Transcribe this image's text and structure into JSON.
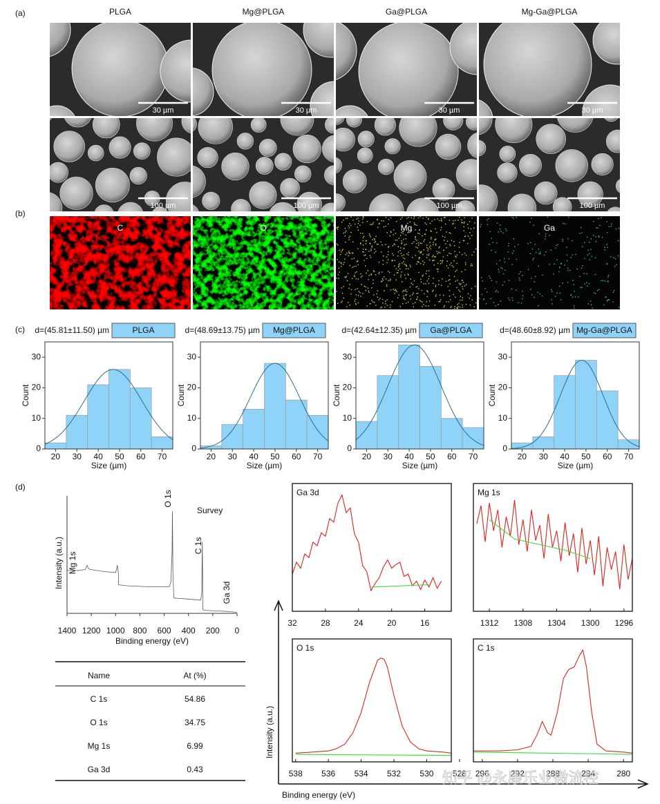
{
  "panel_labels": [
    "(a)",
    "(b)",
    "(c)",
    "(d)"
  ],
  "sem": {
    "columns": [
      "PLGA",
      "Mg@PLGA",
      "Ga@PLGA",
      "Mg-Ga@PLGA"
    ],
    "scale_top": [
      "30 µm",
      "30 µm",
      "30 µm",
      "30 µm"
    ],
    "scale_bottom": [
      "100 µm",
      "100 µm",
      "100 µm",
      "100 µm"
    ]
  },
  "eds": [
    "C",
    "O",
    "Mg",
    "Ga"
  ],
  "chart_data": [
    {
      "type": "histogram",
      "title": "d=(45.81±11.50) µm",
      "bins": [
        15,
        25,
        35,
        45,
        55,
        65,
        75
      ],
      "series": [
        {
          "name": "PLGA",
          "color": "#8fd3f8",
          "values": [
            2,
            11,
            21,
            26,
            20,
            4
          ]
        }
      ],
      "fit": {
        "mean": 47,
        "sd": 13.5,
        "peak": 26,
        "color": "#2f6b8e"
      },
      "xlim": [
        15,
        75
      ],
      "xticks": [
        20,
        30,
        40,
        50,
        60,
        70
      ],
      "ylim": [
        0,
        35
      ],
      "yticks": [
        0,
        10,
        20,
        30
      ],
      "x_label": "Size (µm)",
      "y_label": "Count"
    },
    {
      "type": "histogram",
      "title": "d=(48.69±13.75) µm",
      "bins": [
        15,
        25,
        35,
        45,
        55,
        65,
        75
      ],
      "series": [
        {
          "name": "Mg@PLGA",
          "color": "#8fd3f8",
          "values": [
            1,
            8,
            13,
            28,
            16,
            11
          ]
        }
      ],
      "fit": {
        "mean": 50,
        "sd": 11.5,
        "peak": 28,
        "color": "#2f6b8e"
      },
      "xlim": [
        15,
        75
      ],
      "xticks": [
        20,
        30,
        40,
        50,
        60,
        70
      ],
      "ylim": [
        0,
        35
      ],
      "yticks": [
        0,
        10,
        20,
        30
      ],
      "x_label": "Size (µm)",
      "y_label": "Count"
    },
    {
      "type": "histogram",
      "title": "d=(42.64±12.35) µm",
      "bins": [
        15,
        25,
        35,
        45,
        55,
        65,
        75
      ],
      "series": [
        {
          "name": "Ga@PLGA",
          "color": "#8fd3f8",
          "values": [
            9,
            24,
            34,
            27,
            10,
            7
          ]
        }
      ],
      "fit": {
        "mean": 42.5,
        "sd": 12.5,
        "peak": 34,
        "color": "#2f6b8e"
      },
      "xlim": [
        15,
        75
      ],
      "xticks": [
        20,
        30,
        40,
        50,
        60,
        70
      ],
      "ylim": [
        0,
        35
      ],
      "yticks": [
        0,
        10,
        20,
        30
      ],
      "x_label": "Size (µm)",
      "y_label": "Count"
    },
    {
      "type": "histogram",
      "title": "d=(48.60±8.92) µm",
      "bins": [
        15,
        25,
        35,
        45,
        55,
        65,
        75
      ],
      "series": [
        {
          "name": "Mg-Ga@PLGA",
          "color": "#8fd3f8",
          "values": [
            2,
            4,
            24,
            29,
            19,
            3
          ]
        }
      ],
      "fit": {
        "mean": 48,
        "sd": 10,
        "peak": 29,
        "color": "#2f6b8e"
      },
      "xlim": [
        15,
        75
      ],
      "xticks": [
        20,
        30,
        40,
        50,
        60,
        70
      ],
      "ylim": [
        0,
        35
      ],
      "yticks": [
        0,
        10,
        20,
        30
      ],
      "x_label": "Size (µm)",
      "y_label": "Count"
    },
    {
      "type": "survey",
      "annotations": [
        "O 1s",
        "Survey",
        "C 1s",
        "Mg 1s",
        "Ga 3d"
      ],
      "series": [
        {
          "color": "#555555",
          "x": [
            1400,
            1300,
            1250,
            1235,
            1225,
            1210,
            1100,
            1000,
            985,
            978,
            975,
            900,
            700,
            560,
            545,
            535,
            532,
            528,
            520,
            400,
            300,
            290,
            286,
            284,
            282,
            275,
            100,
            0
          ],
          "values": [
            42,
            42,
            43,
            47,
            44,
            43,
            41,
            40,
            47,
            40,
            28,
            27,
            26,
            26,
            30,
            60,
            100,
            40,
            15,
            14,
            13,
            20,
            70,
            45,
            4,
            3,
            2,
            1
          ]
        }
      ],
      "xlim": [
        1400,
        0
      ],
      "xticks": [
        1400,
        1200,
        1000,
        800,
        600,
        400,
        200,
        0
      ],
      "ylim": [
        0,
        115
      ],
      "x_label": "Binding energy (eV)",
      "y_label": "Intensity (a.u.)"
    },
    {
      "type": "line",
      "title": "Ga 3d",
      "series": [
        {
          "color": "#e0201b",
          "x": [
            32,
            31.5,
            31,
            30.5,
            30,
            29.5,
            29,
            28.5,
            28,
            27.5,
            27,
            26.5,
            26,
            25.5,
            25,
            24.5,
            24,
            23.5,
            23,
            22.5,
            22,
            21.5,
            21,
            20.5,
            20,
            19.5,
            19,
            18.5,
            18,
            17.5,
            17,
            16.5,
            16,
            15.5,
            15,
            14.5,
            14
          ],
          "values": [
            28,
            38,
            33,
            45,
            42,
            55,
            52,
            63,
            60,
            75,
            72,
            88,
            95,
            80,
            84,
            62,
            55,
            35,
            30,
            14,
            20,
            25,
            34,
            40,
            33,
            36,
            38,
            26,
            28,
            18,
            22,
            15,
            23,
            17,
            25,
            16,
            22
          ]
        },
        {
          "color": "#33dd33",
          "x": [
            22.5,
            15.5
          ],
          "values": [
            17,
            19
          ]
        }
      ],
      "xlim": [
        32,
        12.8
      ],
      "xticks": [
        32,
        28,
        24,
        20,
        16
      ],
      "ylim": [
        0,
        100
      ]
    },
    {
      "type": "line",
      "title": "Mg 1s",
      "series": [
        {
          "color": "#e0201b",
          "x": [
            1313.5,
            1313,
            1312.5,
            1312,
            1311.5,
            1311,
            1310.5,
            1310,
            1309.5,
            1309,
            1308.5,
            1308,
            1307.5,
            1307,
            1306.5,
            1306,
            1305.5,
            1305,
            1304.5,
            1304,
            1303.5,
            1303,
            1302.5,
            1302,
            1301.5,
            1301,
            1300.5,
            1300,
            1299.5,
            1299,
            1298.5,
            1298,
            1297.5,
            1297,
            1296.5,
            1296,
            1295.5,
            1295
          ],
          "values": [
            75,
            88,
            62,
            90,
            70,
            85,
            58,
            80,
            66,
            92,
            60,
            78,
            55,
            85,
            63,
            74,
            50,
            82,
            58,
            70,
            48,
            76,
            52,
            68,
            40,
            72,
            46,
            63,
            38,
            66,
            30,
            58,
            42,
            55,
            28,
            60,
            35,
            50
          ]
        },
        {
          "color": "#33dd33",
          "x": [
            1312,
            1309,
            1306,
            1303,
            1300
          ],
          "values": [
            78,
            64,
            60,
            56,
            50
          ]
        }
      ],
      "xlim": [
        1313.9,
        1295
      ],
      "xticks": [
        1312,
        1308,
        1304,
        1300,
        1296
      ],
      "ylim": [
        15,
        100
      ]
    },
    {
      "type": "line",
      "title": "O 1s",
      "series": [
        {
          "color": "#d42a1c",
          "x": [
            538,
            537,
            536,
            535.5,
            535,
            534.5,
            534,
            533.5,
            533,
            532.8,
            532.6,
            532.4,
            532,
            531.5,
            531,
            530.5,
            530,
            529,
            528.5
          ],
          "values": [
            4,
            5,
            6,
            8,
            12,
            22,
            40,
            66,
            86,
            88,
            87,
            80,
            55,
            28,
            14,
            8,
            6,
            5,
            4
          ]
        },
        {
          "color": "#33dd33",
          "x": [
            538,
            528.5
          ],
          "values": [
            3,
            2
          ]
        }
      ],
      "xlim": [
        538.2,
        528.5
      ],
      "xticks": [
        538,
        536,
        534,
        532,
        530,
        528
      ],
      "ylim": [
        0,
        100
      ]
    },
    {
      "type": "line",
      "title": "C 1s",
      "series": [
        {
          "color": "#d42a1c",
          "x": [
            297,
            294,
            292,
            290.5,
            289.8,
            289.2,
            288.6,
            288.2,
            287.5,
            286.8,
            286.2,
            285.6,
            285,
            284.6,
            284.2,
            283.6,
            283,
            282,
            280,
            279
          ],
          "values": [
            6,
            6,
            7,
            10,
            20,
            32,
            22,
            20,
            40,
            70,
            78,
            80,
            90,
            95,
            80,
            40,
            12,
            6,
            5,
            4
          ]
        },
        {
          "color": "#33dd33",
          "x": [
            297,
            279
          ],
          "values": [
            5,
            3
          ]
        }
      ],
      "xlim": [
        297,
        279
      ],
      "xticks": [
        296,
        292,
        288,
        284,
        280
      ],
      "ylim": [
        0,
        100
      ]
    }
  ],
  "xps_axes": {
    "x_label": "Binding energy (eV)",
    "y_label": "Intensity (a.u.)"
  },
  "table": {
    "header": [
      "Name",
      "At (%)"
    ],
    "rows": [
      [
        "C 1s",
        54.86
      ],
      [
        "O 1s",
        34.75
      ],
      [
        "Mg 1s",
        6.99
      ],
      [
        "Ga 3d",
        0.43
      ]
    ]
  },
  "watermark": "知乎 @永康乐业微流控"
}
